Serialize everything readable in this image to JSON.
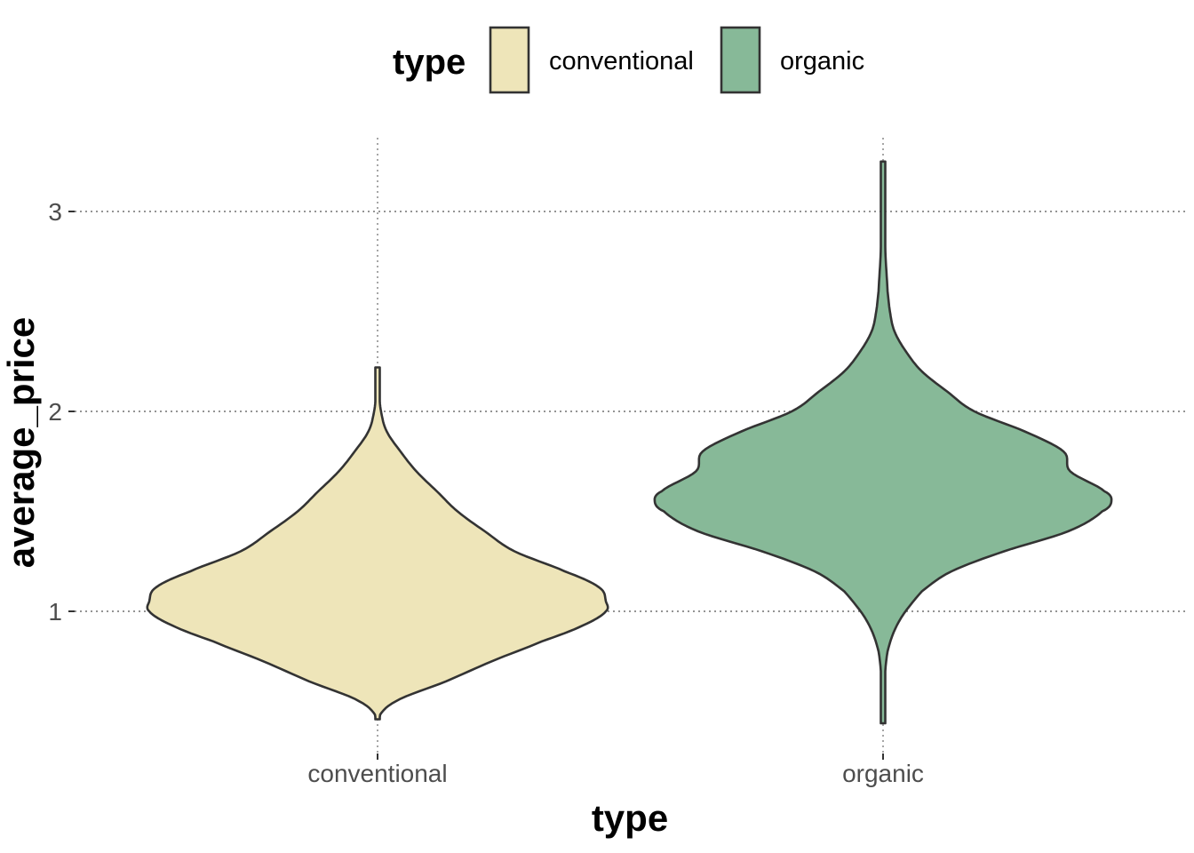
{
  "chart_data": {
    "type": "violin",
    "title": "",
    "xlabel": "type",
    "ylabel": "average_price",
    "categories": [
      "conventional",
      "organic"
    ],
    "ylim": [
      0.28,
      3.35
    ],
    "yticks": [
      1,
      2,
      3
    ],
    "grid": true,
    "legend": {
      "title": "type",
      "placement": "top",
      "entries": [
        "conventional",
        "organic"
      ]
    },
    "colors": {
      "conventional": "#eee5b9",
      "organic": "#87b998",
      "outline": "#333333"
    },
    "series": [
      {
        "name": "conventional",
        "min": 0.46,
        "max": 2.22,
        "density": [
          [
            0.46,
            0.0
          ],
          [
            0.55,
            0.08
          ],
          [
            0.65,
            0.3
          ],
          [
            0.75,
            0.5
          ],
          [
            0.85,
            0.72
          ],
          [
            0.93,
            0.9
          ],
          [
            1.0,
            1.0
          ],
          [
            1.05,
            1.0
          ],
          [
            1.12,
            0.97
          ],
          [
            1.2,
            0.82
          ],
          [
            1.3,
            0.6
          ],
          [
            1.4,
            0.47
          ],
          [
            1.5,
            0.35
          ],
          [
            1.6,
            0.26
          ],
          [
            1.7,
            0.17
          ],
          [
            1.8,
            0.1
          ],
          [
            1.9,
            0.04
          ],
          [
            2.0,
            0.015
          ],
          [
            2.1,
            0.006
          ],
          [
            2.22,
            0.0
          ]
        ]
      },
      {
        "name": "organic",
        "min": 0.44,
        "max": 3.25,
        "density": [
          [
            0.44,
            0.0
          ],
          [
            0.6,
            0.005
          ],
          [
            0.8,
            0.02
          ],
          [
            0.95,
            0.07
          ],
          [
            1.1,
            0.17
          ],
          [
            1.2,
            0.3
          ],
          [
            1.3,
            0.53
          ],
          [
            1.4,
            0.81
          ],
          [
            1.5,
            0.96
          ],
          [
            1.55,
            1.0
          ],
          [
            1.6,
            0.97
          ],
          [
            1.7,
            0.82
          ],
          [
            1.8,
            0.79
          ],
          [
            1.9,
            0.62
          ],
          [
            2.0,
            0.4
          ],
          [
            2.1,
            0.28
          ],
          [
            2.2,
            0.17
          ],
          [
            2.3,
            0.1
          ],
          [
            2.4,
            0.05
          ],
          [
            2.5,
            0.03
          ],
          [
            2.6,
            0.02
          ],
          [
            2.8,
            0.01
          ],
          [
            3.0,
            0.005
          ],
          [
            3.25,
            0.0
          ]
        ]
      }
    ]
  }
}
